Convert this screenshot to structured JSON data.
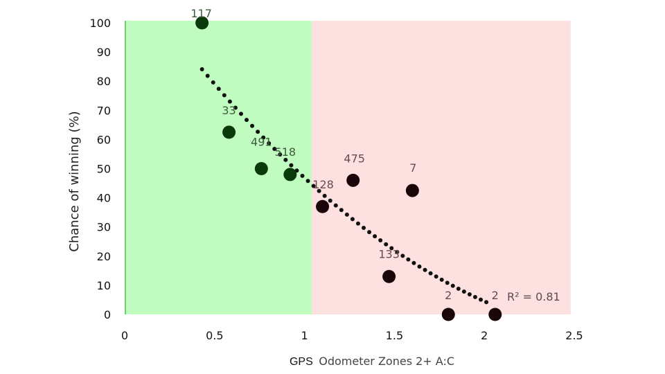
{
  "chart_data": {
    "type": "scatter",
    "title": "",
    "xlabel_prefix": "GPS",
    "xlabel_main": "Odometer Zones 2+ A:C",
    "ylabel": "Chance of winning (%)",
    "xlim": [
      0,
      2.5
    ],
    "ylim": [
      0,
      100
    ],
    "xticks": [
      "0",
      "0.5",
      "1",
      "1.5",
      "2",
      "2.5"
    ],
    "yticks": [
      "0",
      "10",
      "20",
      "30",
      "40",
      "50",
      "60",
      "70",
      "80",
      "90",
      "100"
    ],
    "grid": false,
    "regions": [
      {
        "x0": 0,
        "x1": 1.04,
        "color": "#c0fcc0",
        "edge": "#6ed36e"
      },
      {
        "x0": 1.04,
        "x1": 2.48,
        "color": "#fde0e0"
      }
    ],
    "points": [
      {
        "x": 0.43,
        "y": 100,
        "label": "117"
      },
      {
        "x": 0.58,
        "y": 62.5,
        "label": "33"
      },
      {
        "x": 0.76,
        "y": 50,
        "label": "491"
      },
      {
        "x": 0.92,
        "y": 48,
        "label": "518"
      },
      {
        "x": 1.1,
        "y": 37,
        "label": "128"
      },
      {
        "x": 1.27,
        "y": 46,
        "label": "475"
      },
      {
        "x": 1.47,
        "y": 13,
        "label": "133"
      },
      {
        "x": 1.6,
        "y": 42.5,
        "label": "7"
      },
      {
        "x": 1.8,
        "y": 0,
        "label": "2"
      },
      {
        "x": 2.06,
        "y": 0,
        "label": "2"
      }
    ],
    "trendline": {
      "type": "quadratic",
      "style": "dotted",
      "color": "#111111",
      "x_range": [
        0.43,
        2.03
      ],
      "r2_label": "R² = 0.81"
    },
    "colors": {
      "point_green_zone": "#0a3a0a",
      "point_red_zone": "#1a0508",
      "label_green_zone": "#3c5a3c",
      "label_red_zone": "#6a4a50"
    }
  }
}
